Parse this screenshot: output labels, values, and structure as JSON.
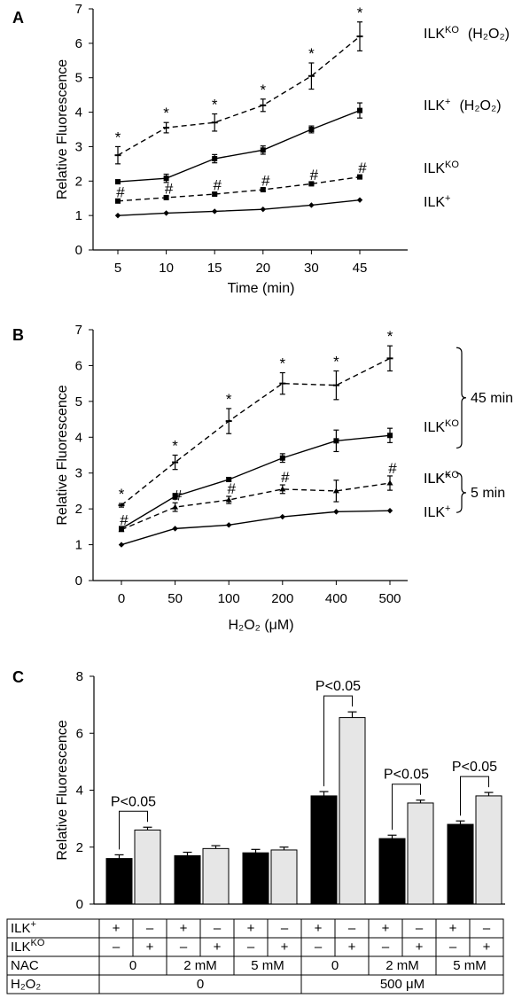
{
  "panels": [
    {
      "letter": "A",
      "chart_data": {
        "type": "line",
        "categories": [
          "5",
          "10",
          "15",
          "20",
          "30",
          "45"
        ],
        "xlabel": "Time (min)",
        "ylabel": "Relative Fluorescence",
        "ylim": [
          0,
          7
        ],
        "yticks": [
          0,
          1,
          2,
          3,
          4,
          5,
          6,
          7
        ],
        "grid": false,
        "series": [
          {
            "name": "ILK⁺ (H₂O₂)",
            "label_main": "ILK",
            "label_sup": "+",
            "label_suffix": "(H₂O₂)",
            "style": "solid",
            "marker": "square",
            "values": [
              1.98,
              2.08,
              2.65,
              2.9,
              3.5,
              4.05
            ],
            "errors": [
              0.05,
              0.12,
              0.12,
              0.12,
              0.1,
              0.22
            ],
            "marks": []
          },
          {
            "name": "ILKᴷᴼ (H₂O₂)",
            "label_main": "ILK",
            "label_sup": "KO",
            "label_suffix": "(H₂O₂)",
            "style": "dashed",
            "marker": "dash",
            "values": [
              2.75,
              3.55,
              3.7,
              4.2,
              5.05,
              6.2
            ],
            "errors": [
              0.25,
              0.15,
              0.25,
              0.18,
              0.38,
              0.42
            ],
            "marks": [
              "*",
              "*",
              "*",
              "*",
              "*",
              "*"
            ]
          },
          {
            "name": "ILKᴷᴼ",
            "label_main": "ILK",
            "label_sup": "KO",
            "label_suffix": "",
            "style": "dashed",
            "marker": "square",
            "values": [
              1.42,
              1.52,
              1.62,
              1.75,
              1.92,
              2.12
            ],
            "errors": [
              0.04,
              0.04,
              0.04,
              0.04,
              0.04,
              0.04
            ],
            "marks": [
              "#",
              "#",
              "#",
              "#",
              "#",
              "#"
            ]
          },
          {
            "name": "ILK⁺",
            "label_main": "ILK",
            "label_sup": "+",
            "label_suffix": "",
            "style": "solid",
            "marker": "diamond",
            "values": [
              1.0,
              1.07,
              1.12,
              1.18,
              1.3,
              1.45
            ],
            "errors": [
              0.02,
              0.02,
              0.02,
              0.02,
              0.03,
              0.03
            ],
            "marks": []
          }
        ]
      }
    },
    {
      "letter": "B",
      "chart_data": {
        "type": "line",
        "categories": [
          "0",
          "50",
          "100",
          "200",
          "400",
          "500"
        ],
        "xlabel": "H₂O₂ (μM)",
        "ylabel": "Relative Fluorescence",
        "ylim": [
          0,
          7
        ],
        "yticks": [
          0,
          1,
          2,
          3,
          4,
          5,
          6,
          7
        ],
        "grid": false,
        "brackets": [
          {
            "label": "45 min",
            "ymin": 3.7,
            "ymax": 6.5
          },
          {
            "label": "5 min",
            "ymin": 1.9,
            "ymax": 3.0
          }
        ],
        "series": [
          {
            "name": "ILKᴷᴼ 45 min",
            "label_main": "ILK",
            "label_sup": "KO",
            "label_suffix": "",
            "style": "dashed",
            "marker": "dash",
            "values": [
              2.1,
              3.3,
              4.45,
              5.5,
              5.45,
              6.2
            ],
            "errors": [
              0.05,
              0.2,
              0.35,
              0.3,
              0.4,
              0.35
            ],
            "marks": [
              "*",
              "*",
              "*",
              "*",
              "*",
              "*"
            ]
          },
          {
            "name": "ILK⁺ 45 min",
            "label_main": "ILK",
            "label_sup": "+",
            "label_suffix": "",
            "style": "solid",
            "marker": "square",
            "values": [
              1.45,
              2.35,
              2.82,
              3.42,
              3.9,
              4.05
            ],
            "errors": [
              0.05,
              0.08,
              0.05,
              0.12,
              0.3,
              0.2
            ],
            "marks": []
          },
          {
            "name": "ILKᴷᴼ 5 min",
            "label_main": "ILK",
            "label_sup": "KO",
            "label_suffix": "",
            "style": "dashed",
            "marker": "triangle",
            "values": [
              1.42,
              2.05,
              2.25,
              2.55,
              2.5,
              2.72
            ],
            "errors": [
              0.05,
              0.12,
              0.1,
              0.12,
              0.3,
              0.2
            ],
            "marks": [
              "#",
              "#",
              "#",
              "#",
              "",
              "#"
            ]
          },
          {
            "name": "ILK⁺ 5 min",
            "label_main": "ILK",
            "label_sup": "+",
            "label_suffix": "",
            "style": "solid",
            "marker": "diamond",
            "values": [
              1.0,
              1.45,
              1.55,
              1.78,
              1.92,
              1.95
            ],
            "errors": [
              0.02,
              0.02,
              0.02,
              0.02,
              0.02,
              0.02
            ],
            "marks": []
          }
        ]
      }
    },
    {
      "letter": "C",
      "chart_data": {
        "type": "bar",
        "ylabel": "Relative Fluorescence",
        "ylim": [
          0,
          8
        ],
        "yticks": [
          0,
          2,
          4,
          6,
          8
        ],
        "grid": false,
        "series": [
          {
            "name": "ILK⁺",
            "color": "#000000",
            "values": [
              1.6,
              1.7,
              1.8,
              3.8,
              2.3,
              2.8
            ],
            "errors": [
              0.13,
              0.12,
              0.12,
              0.15,
              0.12,
              0.12
            ]
          },
          {
            "name": "ILKᴷᴼ",
            "color": "#e6e6e6",
            "values": [
              2.6,
              1.95,
              1.9,
              6.55,
              3.55,
              3.8
            ],
            "errors": [
              0.1,
              0.1,
              0.1,
              0.2,
              0.1,
              0.12
            ]
          }
        ],
        "annotations": [
          "P<0.05",
          "",
          "",
          "P<0.05",
          "P<0.05",
          "P<0.05"
        ],
        "table": {
          "rows": [
            {
              "label_main": "ILK",
              "label_sup": "+",
              "cells": [
                "+",
                "–",
                "+",
                "–",
                "+",
                "–",
                "+",
                "–",
                "+",
                "–",
                "+",
                "–"
              ]
            },
            {
              "label_main": "ILK",
              "label_sup": "KO",
              "cells": [
                "–",
                "+",
                "–",
                "+",
                "–",
                "+",
                "–",
                "+",
                "–",
                "+",
                "–",
                "+"
              ]
            },
            {
              "label_main": "NAC",
              "label_sup": "",
              "cells": [
                "0",
                "2 mM",
                "5 mM",
                "0",
                "2 mM",
                "5 mM"
              ]
            },
            {
              "label_main": "H₂O₂",
              "label_sup": "",
              "cells": [
                "0",
                "500 μM"
              ]
            }
          ]
        }
      }
    }
  ]
}
